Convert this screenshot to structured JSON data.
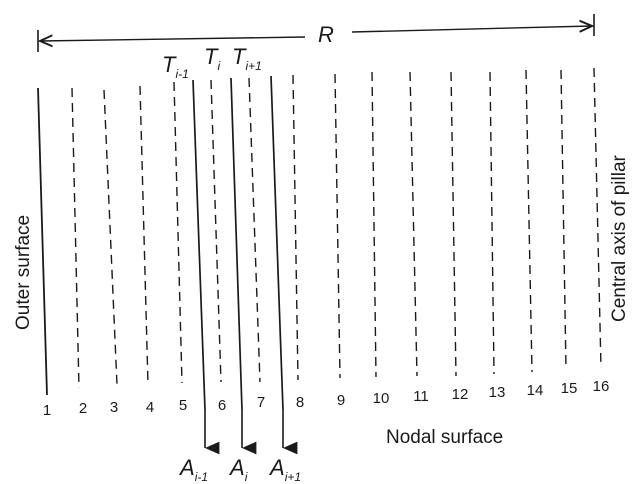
{
  "radius_label": "R",
  "left_label": "Outer surface",
  "right_label": "Central axis of pillar",
  "nodal_label": "Nodal surface",
  "node_numbers": [
    "1",
    "2",
    "3",
    "4",
    "5",
    "6",
    "7",
    "8",
    "9",
    "10",
    "11",
    "12",
    "13",
    "14",
    "15",
    "16"
  ],
  "temperature_labels": [
    {
      "symbol": "T",
      "sub": "i-1"
    },
    {
      "symbol": "T",
      "sub": "i"
    },
    {
      "symbol": "T",
      "sub": "i+1"
    }
  ],
  "area_labels": [
    {
      "symbol": "A",
      "sub": "i-1"
    },
    {
      "symbol": "A",
      "sub": "i"
    },
    {
      "symbol": "A",
      "sub": "i+1"
    }
  ]
}
